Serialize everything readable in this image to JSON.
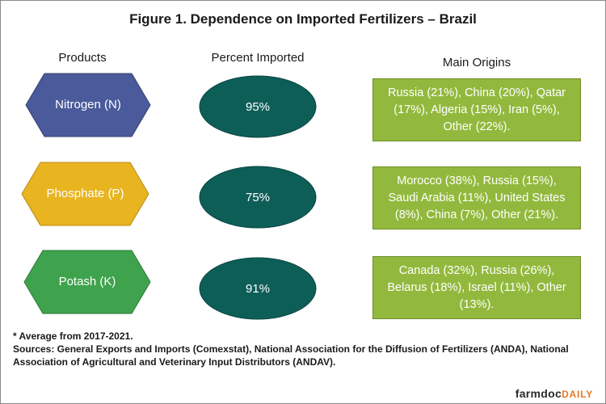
{
  "title": "Figure 1. Dependence on Imported Fertilizers – Brazil",
  "columns": {
    "products": "Products",
    "percent": "Percent Imported",
    "origins": "Main Origins"
  },
  "rows": [
    {
      "product": "Nitrogen (N)",
      "product_color": "#4a5a9a",
      "percent": "95%",
      "origins": "Russia (21%), China (20%), Qatar (17%), Algeria (15%), Iran (5%), Other (22%)."
    },
    {
      "product": "Phosphate (P)",
      "product_color": "#e8b420",
      "percent": "75%",
      "origins": "Morocco (38%), Russia (15%), Saudi Arabia (11%), United States (8%), China (7%), Other (21%)."
    },
    {
      "product": "Potash (K)",
      "product_color": "#3fa34d",
      "percent": "91%",
      "origins": "Canada (32%), Russia (26%), Belarus (18%), Israel (11%), Other (13%)."
    }
  ],
  "oval_color": "#0e5e58",
  "origin_box_color": "#92b93d",
  "footnote": {
    "average": "* Average from 2017-2021.",
    "sources": "Sources: General Exports and Imports (Comexstat), National Association for the Diffusion of Fertilizers (ANDA), National Association of Agricultural and Veterinary Input Distributors (ANDAV)."
  },
  "brand": {
    "farmdoc": "farmdoc",
    "daily": "DAILY"
  }
}
